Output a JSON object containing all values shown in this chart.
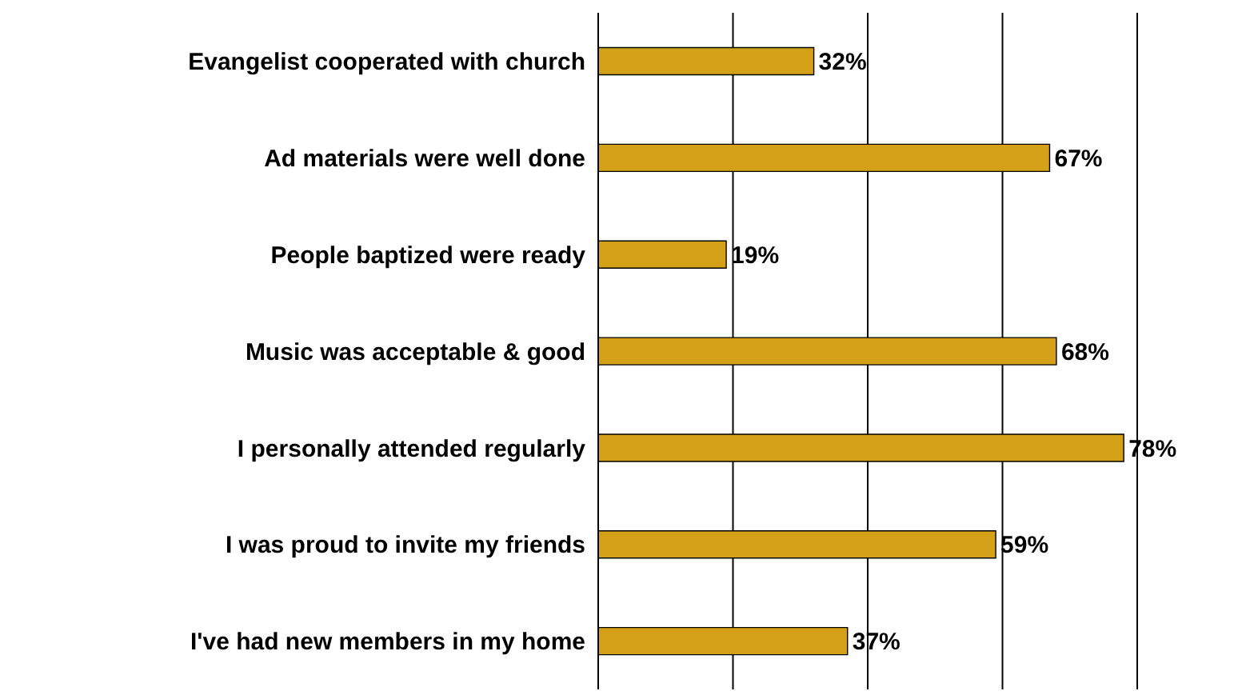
{
  "chart_data": {
    "type": "bar",
    "orientation": "horizontal",
    "categories": [
      "Evangelist cooperated with church",
      "Ad materials were well done",
      "People baptized were ready",
      "Music was acceptable & good",
      "I personally attended regularly",
      "I was proud to invite my friends",
      "I've had new members in my home"
    ],
    "values": [
      32,
      67,
      19,
      68,
      78,
      59,
      37
    ],
    "value_labels": [
      "32%",
      "67%",
      "19%",
      "68%",
      "78%",
      "59%",
      "37%"
    ],
    "color": "#d4a017",
    "xlim": [
      0,
      80
    ],
    "xticks": [
      {
        "value": 0,
        "label": null
      },
      {
        "value": 20,
        "label": null
      },
      {
        "value": 40,
        "label": null
      },
      {
        "value": 60,
        "label": null
      },
      {
        "value": 80,
        "label": null
      }
    ],
    "grid": "x",
    "tick_labels": "y"
  }
}
